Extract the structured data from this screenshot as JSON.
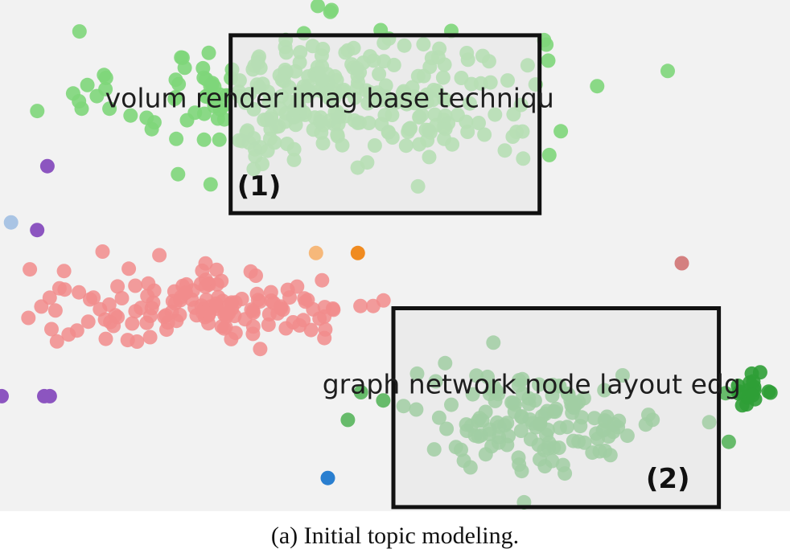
{
  "chart_data": {
    "type": "scatter",
    "title": "",
    "xlabel": "",
    "ylabel": "",
    "grid": false,
    "legend": "none",
    "xlim": [
      0,
      100
    ],
    "ylim": [
      0,
      100
    ],
    "clusters": [
      {
        "color": "#7ed67a",
        "opacity": 0.9,
        "center": [
          42,
          81
        ],
        "spread": [
          24,
          12
        ],
        "count": 300
      },
      {
        "color": "#f28c8c",
        "opacity": 0.85,
        "center": [
          26,
          40
        ],
        "spread": [
          22,
          7
        ],
        "count": 150
      },
      {
        "color": "#4fb154",
        "opacity": 0.85,
        "center": [
          68,
          18
        ],
        "spread": [
          15,
          9
        ],
        "count": 140
      },
      {
        "color": "#2f9e36",
        "opacity": 0.9,
        "center": [
          95,
          24
        ],
        "spread": [
          2.5,
          3
        ],
        "count": 18
      }
    ],
    "points": [
      {
        "x": 6.0,
        "y": 67.5,
        "color": "#8c55c0"
      },
      {
        "x": 4.7,
        "y": 55.0,
        "color": "#8c55c0"
      },
      {
        "x": 5.6,
        "y": 22.5,
        "color": "#8c55c0"
      },
      {
        "x": 6.3,
        "y": 22.5,
        "color": "#8c55c0"
      },
      {
        "x": 0.2,
        "y": 22.5,
        "color": "#8c55c0"
      },
      {
        "x": 1.4,
        "y": 56.5,
        "color": "#a9c4e4"
      },
      {
        "x": 41.5,
        "y": 6.5,
        "color": "#2a7fd0"
      },
      {
        "x": 45.3,
        "y": 50.5,
        "color": "#f08b20"
      },
      {
        "x": 40.0,
        "y": 50.5,
        "color": "#f6b87a"
      },
      {
        "x": 86.3,
        "y": 48.5,
        "color": "#d48080"
      }
    ],
    "boxes": [
      {
        "label": "(1)",
        "x0": 29.2,
        "x1": 68.3,
        "y0": 58.3,
        "y1": 93.1
      },
      {
        "label": "(2)",
        "x0": 49.8,
        "x1": 91.0,
        "y0": 0.8,
        "y1": 39.7
      }
    ],
    "annotations": [
      {
        "text": "volum render imag base techniqu",
        "x": 13.3,
        "y": 79.0
      },
      {
        "text": "graph network node layout edg",
        "x": 40.8,
        "y": 23.0
      }
    ]
  },
  "caption": "(a) Initial topic modeling."
}
